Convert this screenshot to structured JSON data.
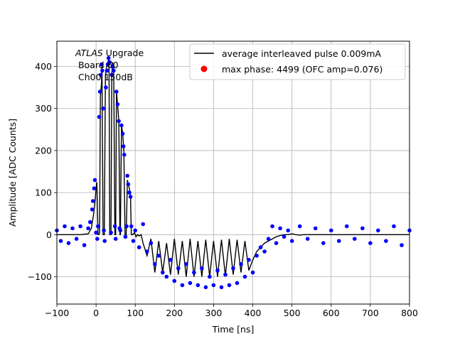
{
  "chart_data": {
    "type": "scatter",
    "title": "",
    "xlabel": "Time [ns]",
    "ylabel": "Amplitude [ADC Counts]",
    "xlim": [
      -100,
      800
    ],
    "ylim": [
      -165,
      460
    ],
    "x_ticks": [
      -100,
      0,
      100,
      200,
      300,
      400,
      500,
      600,
      700,
      800
    ],
    "y_ticks": [
      -100,
      0,
      100,
      200,
      300,
      400
    ],
    "grid": true,
    "legend_position": "top-right",
    "annotation": {
      "italic": "ATLAS",
      "line1_rest": " Upgrade",
      "line2": " Board 60",
      "line3": " Ch00 150dB"
    },
    "series": [
      {
        "name": "average interleaved pulse 0.009mA",
        "kind": "line",
        "color": "#000000",
        "x": [
          -100,
          -40,
          -20,
          -12,
          -6,
          -2,
          0,
          2,
          5,
          7,
          9,
          11,
          14,
          15,
          18,
          21,
          24,
          27,
          30,
          33,
          35,
          38,
          40,
          42,
          45,
          48,
          50,
          52,
          55,
          58,
          61,
          62,
          65,
          68,
          71,
          74,
          77,
          80,
          82,
          85,
          88,
          90,
          94,
          98,
          102,
          106,
          110,
          115,
          120,
          130,
          140,
          150,
          160,
          170,
          180,
          190,
          200,
          210,
          220,
          230,
          240,
          250,
          260,
          270,
          280,
          290,
          300,
          310,
          320,
          330,
          340,
          350,
          360,
          370,
          380,
          390,
          400,
          410,
          420,
          430,
          440,
          450,
          460,
          470,
          480,
          490,
          500,
          510,
          520,
          530,
          540,
          550,
          600,
          700,
          800
        ],
        "y": [
          0,
          0,
          2,
          15,
          50,
          85,
          110,
          125,
          0,
          0,
          5,
          330,
          360,
          400,
          0,
          0,
          380,
          400,
          410,
          420,
          0,
          0,
          380,
          410,
          400,
          0,
          0,
          340,
          310,
          270,
          0,
          0,
          260,
          240,
          200,
          0,
          0,
          130,
          120,
          110,
          90,
          0,
          0,
          5,
          -5,
          0,
          -3,
          0,
          -20,
          -50,
          -10,
          -90,
          -15,
          -90,
          -20,
          -95,
          -10,
          -95,
          -15,
          -100,
          -10,
          -100,
          -15,
          -100,
          -12,
          -100,
          -15,
          -100,
          -12,
          -98,
          -10,
          -95,
          -12,
          -90,
          -15,
          -85,
          -60,
          -40,
          -30,
          -20,
          -15,
          -10,
          -5,
          -2,
          0,
          0,
          2,
          0,
          -1,
          0,
          0,
          0,
          0,
          0,
          0
        ]
      },
      {
        "name": "max phase: 4499 (OFC amp=0.076)",
        "kind": "scatter",
        "color": "#0000ff",
        "x": [
          -100,
          -90,
          -80,
          -70,
          -60,
          -50,
          -40,
          -30,
          -20,
          -15,
          -10,
          -8,
          -5,
          -3,
          0,
          3,
          5,
          8,
          10,
          12,
          14,
          16,
          18,
          20,
          22,
          25,
          28,
          30,
          32,
          35,
          38,
          40,
          42,
          45,
          48,
          50,
          52,
          55,
          58,
          60,
          62,
          65,
          68,
          70,
          72,
          75,
          78,
          80,
          82,
          85,
          88,
          90,
          95,
          100,
          110,
          120,
          130,
          140,
          150,
          160,
          170,
          180,
          190,
          200,
          210,
          220,
          230,
          240,
          250,
          260,
          270,
          280,
          290,
          300,
          310,
          320,
          330,
          340,
          350,
          360,
          370,
          380,
          390,
          400,
          410,
          420,
          430,
          440,
          450,
          460,
          470,
          480,
          490,
          500,
          520,
          540,
          560,
          580,
          600,
          620,
          640,
          660,
          680,
          700,
          720,
          740,
          760,
          780,
          800
        ],
        "y": [
          10,
          -15,
          20,
          -20,
          15,
          -10,
          20,
          -25,
          15,
          30,
          60,
          80,
          110,
          130,
          5,
          -10,
          20,
          280,
          340,
          380,
          405,
          390,
          300,
          10,
          -15,
          350,
          390,
          405,
          420,
          410,
          5,
          380,
          400,
          390,
          20,
          -10,
          340,
          310,
          270,
          15,
          10,
          260,
          240,
          210,
          190,
          -5,
          20,
          140,
          120,
          100,
          90,
          20,
          -15,
          10,
          -30,
          25,
          -40,
          -20,
          -70,
          -50,
          -90,
          -100,
          -60,
          -110,
          -80,
          -120,
          -70,
          -115,
          -90,
          -120,
          -80,
          -125,
          -100,
          -120,
          -85,
          -125,
          -95,
          -120,
          -80,
          -115,
          -70,
          -100,
          -60,
          -90,
          -50,
          -30,
          -40,
          -10,
          20,
          -20,
          15,
          -5,
          10,
          -15,
          20,
          -10,
          15,
          -20,
          10,
          -15,
          20,
          -10,
          15,
          -20,
          10,
          -15,
          20,
          -25,
          10
        ]
      }
    ]
  }
}
